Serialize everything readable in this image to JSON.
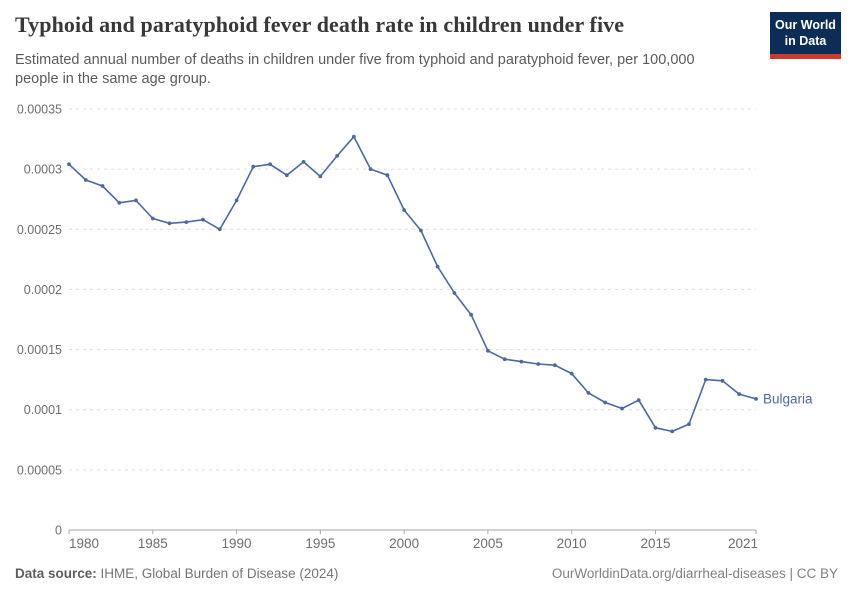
{
  "header": {
    "title": "Typhoid and paratyphoid fever death rate in children under five",
    "subtitle": "Estimated annual number of deaths in children under five from typhoid and paratyphoid fever, per 100,000 people in the same age group.",
    "logo_line1": "Our World",
    "logo_line2": "in Data"
  },
  "footer": {
    "datasource_label": "Data source:",
    "datasource_text": "IHME, Global Burden of Disease (2024)",
    "credit": "OurWorldinData.org/diarrheal-diseases | CC BY"
  },
  "colors": {
    "line": "#4a69a5",
    "end_label": "#4a69a5",
    "grid": "#dcdcdc",
    "axis": "#a5a5a5",
    "tick_text": "#6e6e6e",
    "logo_bg": "#0d2d59",
    "logo_red": "#cc3b2e"
  },
  "chart_data": {
    "type": "line",
    "title": "Typhoid and paratyphoid fever death rate in children under five",
    "xlabel": "",
    "ylabel": "",
    "xlim": [
      1980,
      2021
    ],
    "ylim": [
      0,
      0.00035
    ],
    "grid": "horizontal-dashed",
    "legend_position": "end-of-line",
    "x_ticks": [
      1980,
      1985,
      1990,
      1995,
      2000,
      2005,
      2010,
      2015,
      2021
    ],
    "y_ticks": [
      0,
      5e-05,
      0.0001,
      0.00015,
      0.0002,
      0.00025,
      0.0003,
      0.00035
    ],
    "y_tick_labels": [
      "0",
      "0.00005",
      "0.0001",
      "0.00015",
      "0.0002",
      "0.00025",
      "0.0003",
      "0.00035"
    ],
    "x": [
      1980,
      1981,
      1982,
      1983,
      1984,
      1985,
      1986,
      1987,
      1988,
      1989,
      1990,
      1991,
      1992,
      1993,
      1994,
      1995,
      1996,
      1997,
      1998,
      1999,
      2000,
      2001,
      2002,
      2003,
      2004,
      2005,
      2006,
      2007,
      2008,
      2009,
      2010,
      2011,
      2012,
      2013,
      2014,
      2015,
      2016,
      2017,
      2018,
      2019,
      2020,
      2021
    ],
    "series": [
      {
        "name": "Bulgaria",
        "values": [
          0.000304,
          0.000291,
          0.000286,
          0.000272,
          0.000274,
          0.000259,
          0.000255,
          0.000256,
          0.000258,
          0.00025,
          0.000274,
          0.000302,
          0.000304,
          0.000295,
          0.000306,
          0.000294,
          0.000311,
          0.000327,
          0.0003,
          0.000295,
          0.000266,
          0.000249,
          0.000219,
          0.000197,
          0.000179,
          0.000149,
          0.000142,
          0.00014,
          0.000138,
          0.000137,
          0.00013,
          0.000114,
          0.000106,
          0.000101,
          0.000108,
          8.5e-05,
          8.2e-05,
          8.8e-05,
          0.000125,
          0.000124,
          0.000113,
          0.000109
        ]
      }
    ]
  }
}
